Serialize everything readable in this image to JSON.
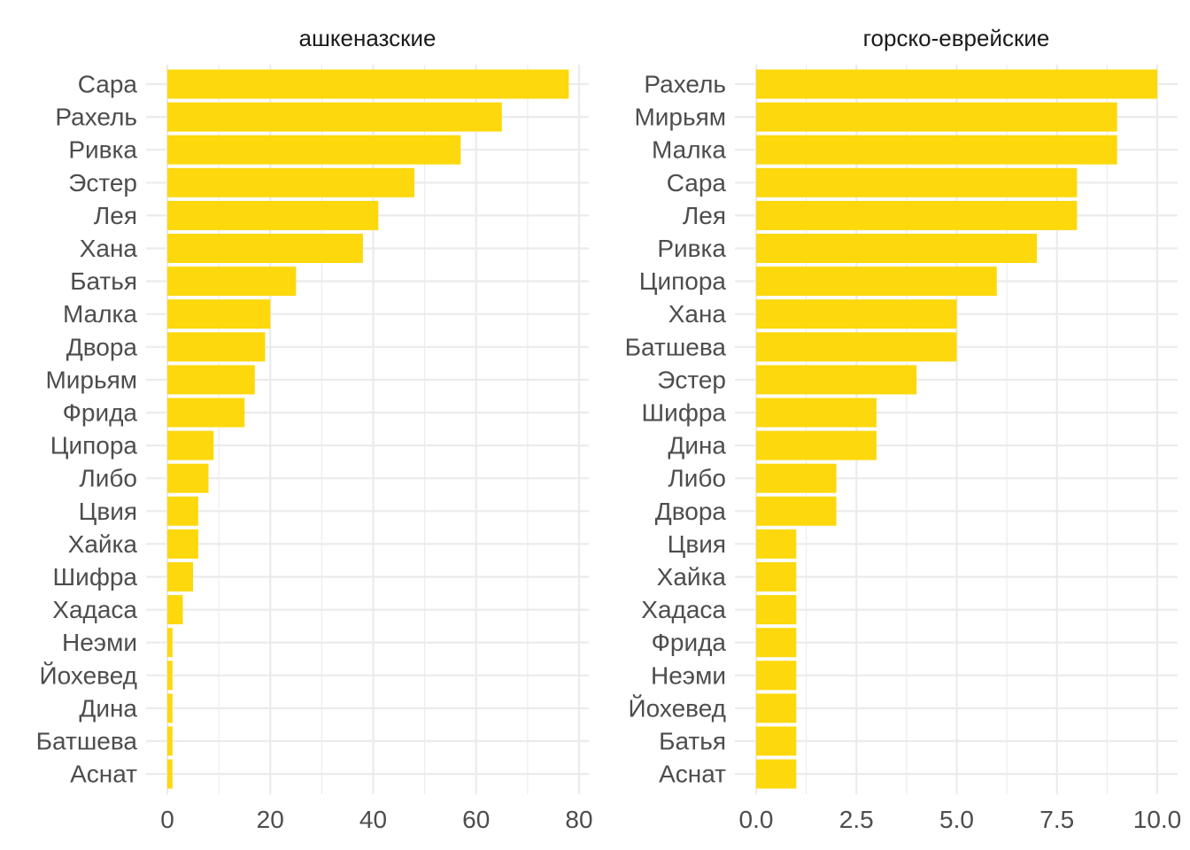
{
  "chart_data": [
    {
      "type": "bar",
      "orientation": "horizontal",
      "title": "ашкеназские",
      "categories": [
        "Сара",
        "Рахель",
        "Ривка",
        "Эстер",
        "Лея",
        "Хана",
        "Батья",
        "Малка",
        "Двора",
        "Мирьям",
        "Фрида",
        "Ципора",
        "Либо",
        "Цвия",
        "Хайка",
        "Шифра",
        "Хадаса",
        "Неэми",
        "Йохевед",
        "Дина",
        "Батшева",
        "Аснат"
      ],
      "values": [
        78,
        65,
        57,
        48,
        41,
        38,
        25,
        20,
        19,
        17,
        15,
        9,
        8,
        6,
        6,
        5,
        3,
        1,
        1,
        1,
        1,
        1
      ],
      "xlim": [
        0,
        80
      ],
      "xticks": [
        0,
        20,
        40,
        60,
        80
      ],
      "xtick_labels": [
        "0",
        "20",
        "40",
        "60",
        "80"
      ],
      "bar_color": "#FDD80C",
      "grid": true
    },
    {
      "type": "bar",
      "orientation": "horizontal",
      "title": "горско-еврейские",
      "categories": [
        "Рахель",
        "Мирьям",
        "Малка",
        "Сара",
        "Лея",
        "Ривка",
        "Ципора",
        "Хана",
        "Батшева",
        "Эстер",
        "Шифра",
        "Дина",
        "Либо",
        "Двора",
        "Цвия",
        "Хайка",
        "Хадаса",
        "Фрида",
        "Неэми",
        "Йохевед",
        "Батья",
        "Аснат"
      ],
      "values": [
        10,
        9,
        9,
        8,
        8,
        7,
        6,
        5,
        5,
        4,
        3,
        3,
        2,
        2,
        1,
        1,
        1,
        1,
        1,
        1,
        1,
        1
      ],
      "xlim": [
        0,
        10
      ],
      "xticks": [
        0,
        2.5,
        5,
        7.5,
        10
      ],
      "xtick_labels": [
        "0.0",
        "2.5",
        "5.0",
        "7.5",
        "10.0"
      ],
      "bar_color": "#FDD80C",
      "grid": true
    }
  ]
}
